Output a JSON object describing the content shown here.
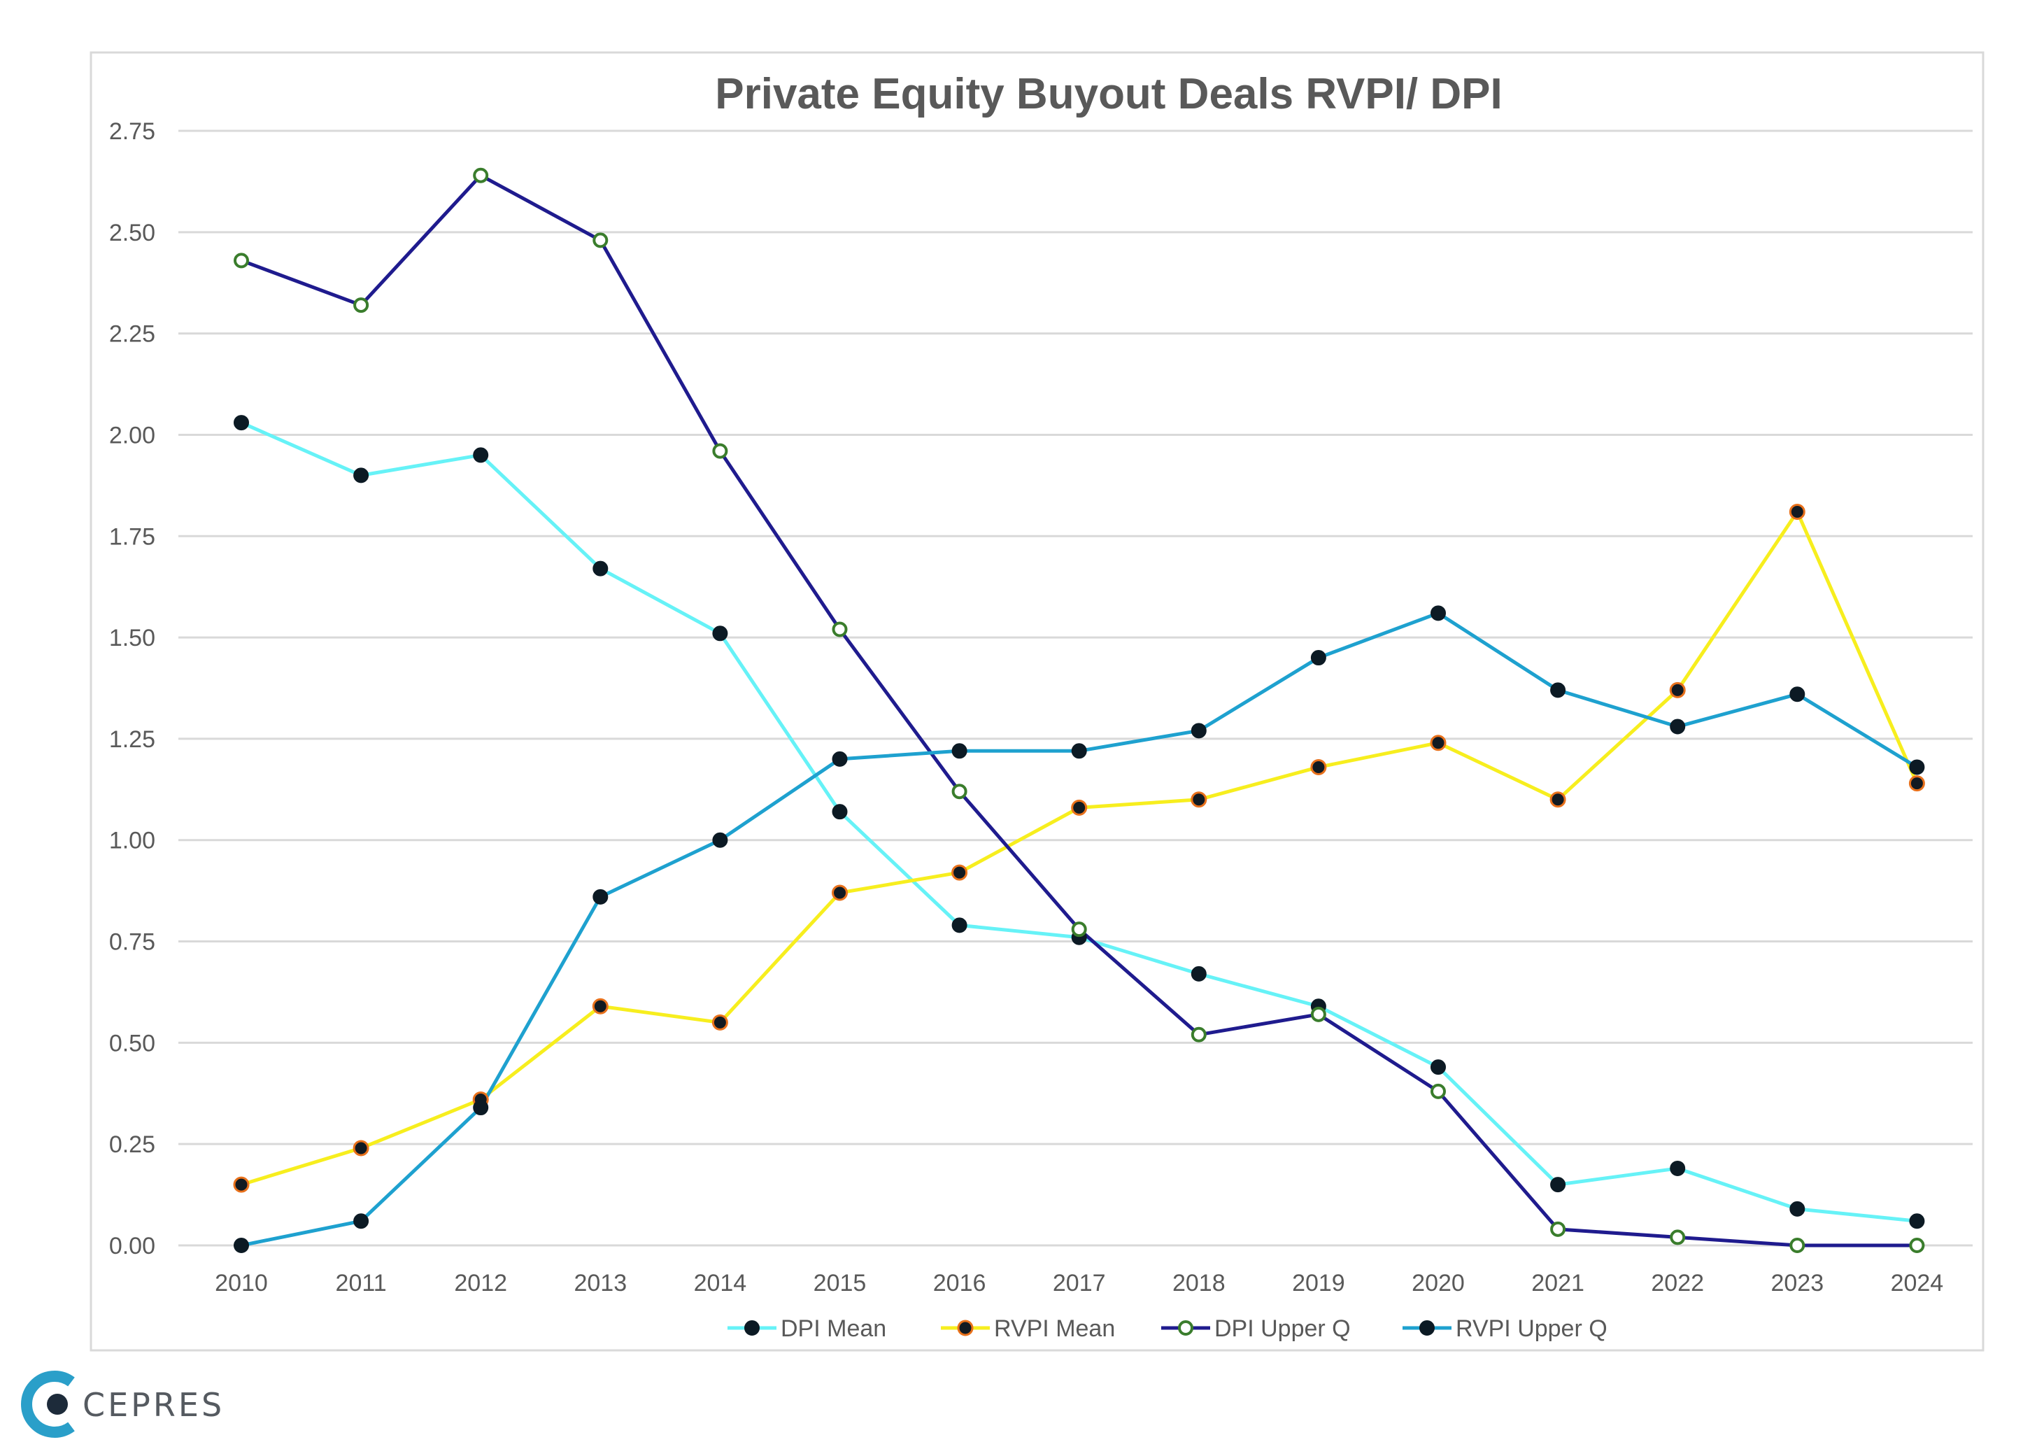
{
  "chart_data": {
    "type": "line",
    "title": "Private Equity Buyout Deals RVPI/ DPI",
    "xlabel": "",
    "ylabel": "",
    "categories": [
      "2010",
      "2011",
      "2012",
      "2013",
      "2014",
      "2015",
      "2016",
      "2017",
      "2018",
      "2019",
      "2020",
      "2021",
      "2022",
      "2023",
      "2024"
    ],
    "ylim": [
      0,
      2.75
    ],
    "yticks": [
      "0.00",
      "0.25",
      "0.50",
      "0.75",
      "1.00",
      "1.25",
      "1.50",
      "1.75",
      "2.00",
      "2.25",
      "2.50",
      "2.75"
    ],
    "grid": true,
    "legend_position": "bottom",
    "series": [
      {
        "name": "DPI Mean",
        "color": "#66f2f7",
        "marker": "dark-filled",
        "values": [
          2.03,
          1.9,
          1.95,
          1.67,
          1.51,
          1.07,
          0.79,
          0.76,
          0.67,
          0.59,
          0.44,
          0.15,
          0.19,
          0.09,
          0.06
        ]
      },
      {
        "name": "RVPI Mean",
        "color": "#f7ee1e",
        "marker": "orange-ring",
        "values": [
          0.15,
          0.24,
          0.36,
          0.59,
          0.55,
          0.87,
          0.92,
          1.08,
          1.1,
          1.18,
          1.24,
          1.1,
          1.37,
          1.81,
          1.14
        ]
      },
      {
        "name": "DPI Upper Q",
        "color": "#1f1b8e",
        "marker": "hollow-green",
        "values": [
          2.43,
          2.32,
          2.64,
          2.48,
          1.96,
          1.52,
          1.12,
          0.78,
          0.52,
          0.57,
          0.38,
          0.04,
          0.02,
          0.0,
          0.0
        ]
      },
      {
        "name": "RVPI Upper Q",
        "color": "#1ea1cf",
        "marker": "dark-filled",
        "values": [
          0.0,
          0.06,
          0.34,
          0.86,
          1.0,
          1.2,
          1.22,
          1.22,
          1.27,
          1.45,
          1.56,
          1.37,
          1.28,
          1.36,
          1.18
        ]
      }
    ]
  },
  "logo": {
    "text": "CEPRES"
  }
}
